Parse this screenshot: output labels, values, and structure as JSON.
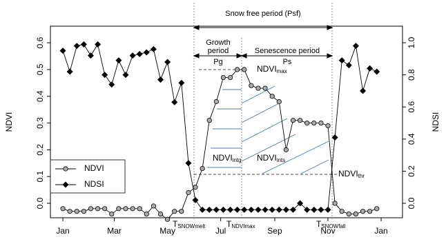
{
  "chart_data": {
    "type": "line",
    "y_label": "NDVI",
    "y2_label": "NDSI",
    "x": [
      1,
      9,
      17,
      25,
      33,
      41,
      49,
      57,
      65,
      73,
      81,
      89,
      97,
      105,
      113,
      121,
      129,
      137,
      145,
      153,
      161,
      169,
      177,
      185,
      193,
      201,
      209,
      217,
      225,
      233,
      241,
      249,
      257,
      265,
      273,
      281,
      289,
      297,
      305,
      313,
      321,
      329,
      337,
      345,
      353,
      361
    ],
    "xlim": [
      -13.3,
      390.5
    ],
    "xticks": [
      {
        "value": 1,
        "label": "Jan"
      },
      {
        "value": 60,
        "label": "Mar"
      },
      {
        "value": 121,
        "label": "May"
      },
      {
        "value": 182,
        "label": "Jul"
      },
      {
        "value": 244,
        "label": "Sep"
      },
      {
        "value": 305,
        "label": "Nov"
      },
      {
        "value": 366,
        "label": "Jan"
      }
    ],
    "ylim": [
      -0.054,
      0.662
    ],
    "yticks": [
      {
        "value": 0,
        "label": "0.0"
      },
      0.1,
      0.2,
      0.3,
      0.4,
      0.5,
      0.6
    ],
    "y2lim": [
      -0.09,
      1.103
    ],
    "y2ticks": [
      {
        "value": 0,
        "label": "0.0"
      },
      0.2,
      0.4,
      0.6,
      0.8,
      {
        "value": 1,
        "label": "1.0"
      }
    ],
    "legend": "bottom-left",
    "series": [
      {
        "name": "NDVI",
        "color": "#aaaaaa",
        "marker": "circle",
        "values": [
          -0.02,
          -0.03,
          -0.03,
          -0.03,
          -0.02,
          -0.02,
          -0.02,
          -0.04,
          -0.02,
          -0.02,
          -0.02,
          -0.02,
          -0.04,
          -0.01,
          -0.04,
          -0.06,
          -0.03,
          -0.03,
          0.04,
          0.06,
          0.13,
          0.31,
          0.38,
          0.47,
          0.47,
          0.5,
          0.5,
          0.44,
          0.43,
          0.43,
          0.4,
          0.38,
          0.2,
          0.31,
          0.31,
          0.3,
          0.3,
          0.3,
          0.29,
          0.0,
          -0.03,
          -0.04,
          -0.04,
          -0.03,
          -0.03,
          -0.02
        ]
      },
      {
        "name": "NDSI",
        "color": "#000000",
        "marker": "diamond",
        "axis": "y2",
        "values": [
          0.95,
          0.82,
          0.98,
          0.99,
          0.92,
          0.99,
          0.8,
          0.74,
          0.89,
          0.8,
          0.92,
          0.93,
          0.94,
          0.96,
          0.77,
          0.88,
          0.63,
          0.75,
          0.25,
          0.02,
          -0.04,
          -0.04,
          -0.04,
          -0.04,
          -0.04,
          -0.04,
          -0.04,
          -0.04,
          -0.04,
          -0.04,
          -0.04,
          -0.04,
          -0.04,
          -0.04,
          0.0,
          -0.04,
          -0.04,
          -0.04,
          -0.04,
          0.41,
          0.89,
          0.86,
          0.98,
          0.7,
          0.84,
          0.82
        ]
      }
    ],
    "annotations": [
      {
        "text": "Snow free period (Psf)"
      },
      {
        "text": "Growth"
      },
      {
        "text": "period"
      },
      {
        "text": "Pg"
      },
      {
        "text": "Senescence period"
      },
      {
        "text": "Ps"
      },
      {
        "text": "NDVI",
        "sub": "max"
      },
      {
        "text": "NDVI",
        "sub": "intg"
      },
      {
        "text": "NDVI",
        "sub": "ints"
      },
      {
        "text": "NDVI",
        "sub": "thr"
      },
      {
        "text": "T",
        "sub": "SNOWmelt"
      },
      {
        "text": "T",
        "sub": "NDVImax"
      },
      {
        "text": "T",
        "sub": "SNOWfall"
      }
    ]
  }
}
